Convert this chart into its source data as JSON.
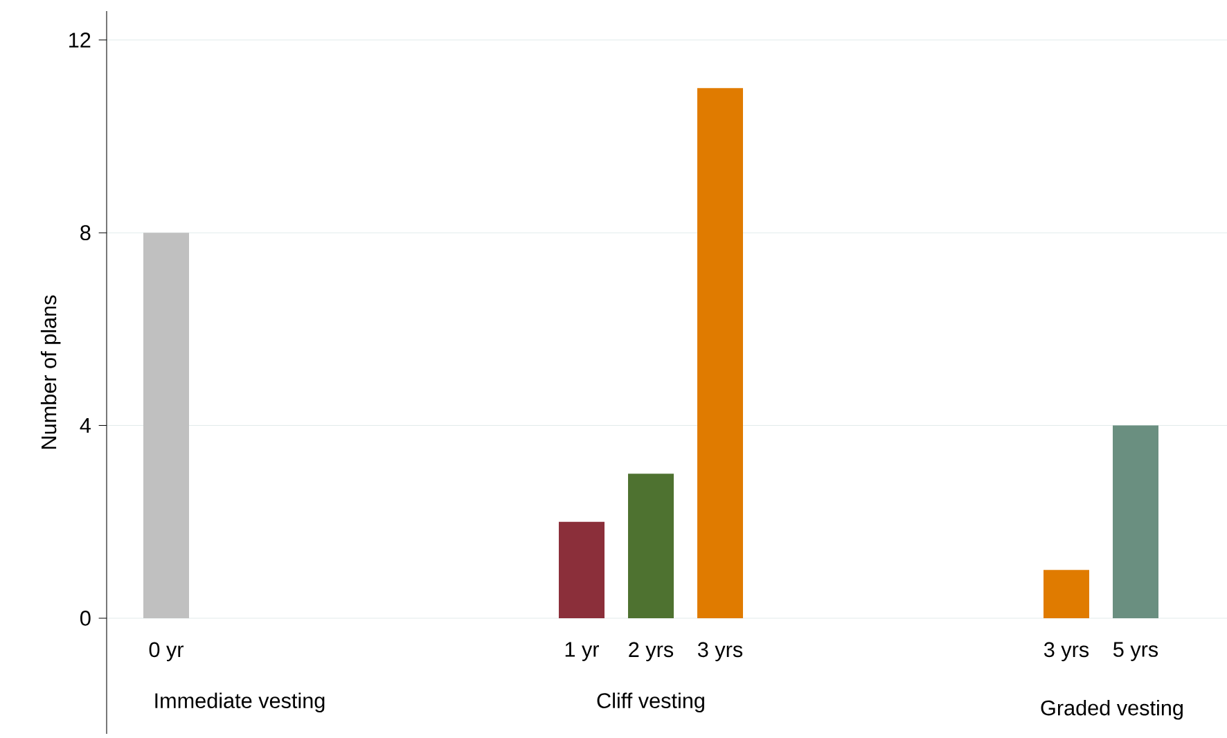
{
  "chart_data": {
    "type": "bar",
    "ylabel": "Number of plans",
    "categories": [
      "0 yr",
      null,
      null,
      null,
      null,
      null,
      "1 yr",
      "2 yrs",
      "3 yrs",
      null,
      null,
      null,
      null,
      "3 yrs",
      "5 yrs"
    ],
    "values": [
      8,
      null,
      null,
      null,
      null,
      null,
      2,
      3,
      11,
      null,
      null,
      null,
      null,
      1,
      4
    ],
    "colors": [
      "#c0c0c0",
      null,
      null,
      null,
      null,
      null,
      "#8b2f3a",
      "#4e7230",
      "#e07b00",
      null,
      null,
      null,
      null,
      "#e07b00",
      "#6a8f80"
    ],
    "ylim": [
      -2.4,
      12.6
    ],
    "yticks": [
      0,
      4,
      8,
      12
    ],
    "grid": "y",
    "annotations": [
      "Immediate vesting",
      "Cliff vesting",
      "Graded vesting"
    ]
  }
}
